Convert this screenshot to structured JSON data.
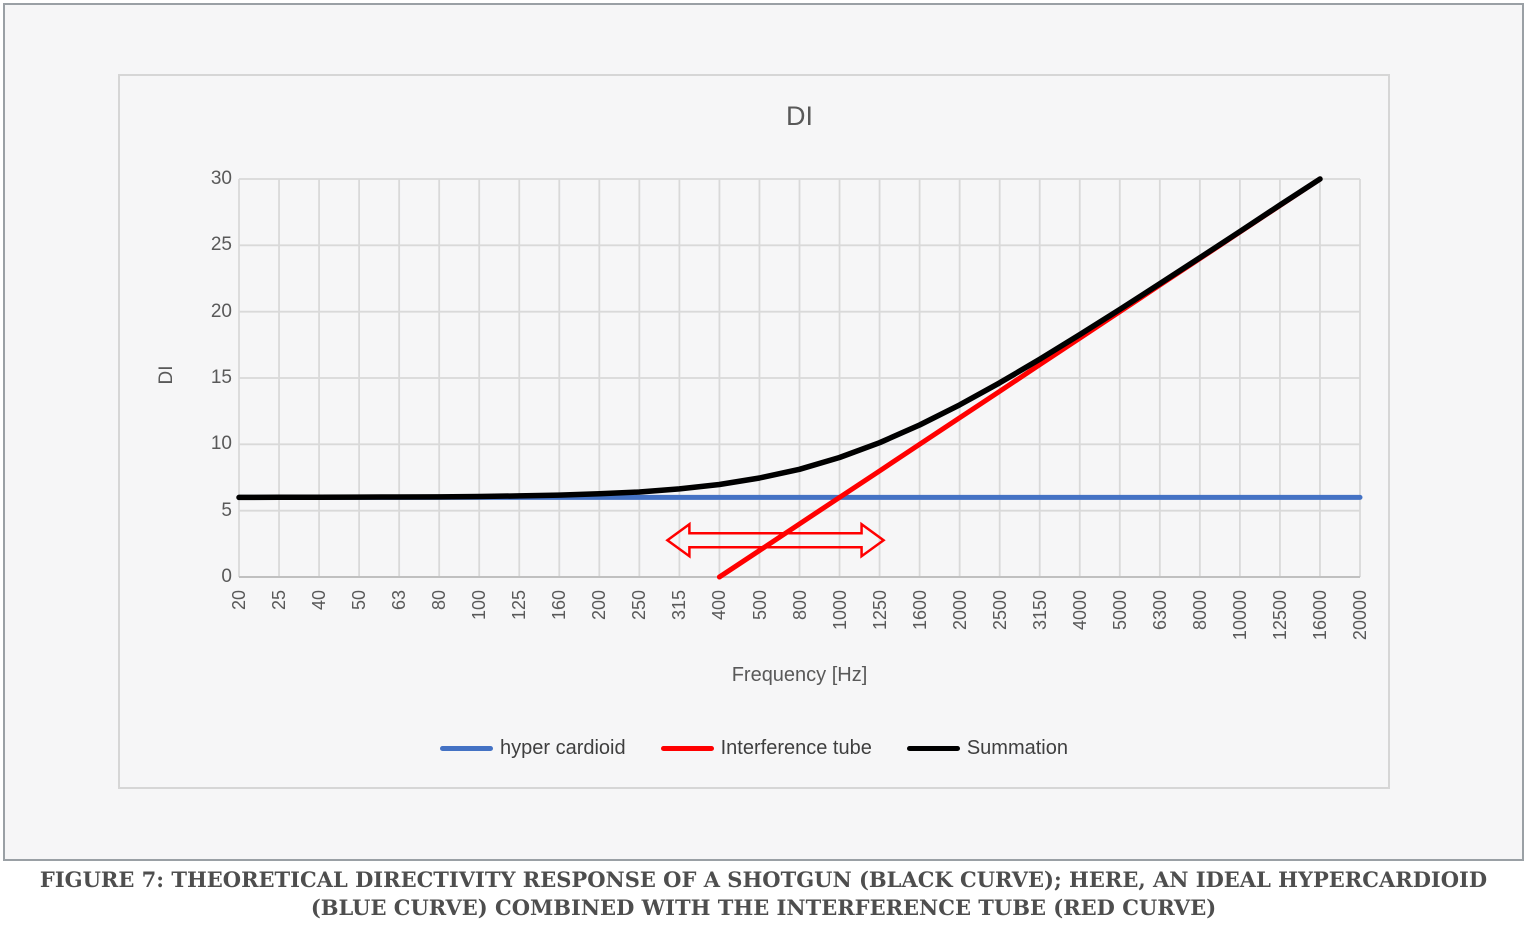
{
  "figure_caption": {
    "line1": "FIGURE 7: THEORETICAL DIRECTIVITY RESPONSE OF A SHOTGUN (BLACK CURVE); HERE, AN IDEAL HYPERCARDIOID",
    "line2": "(BLUE CURVE) COMBINED WITH THE INTERFERENCE TUBE (RED CURVE)"
  },
  "chart_data": {
    "type": "line",
    "title": "DI",
    "xlabel": "Frequency [Hz]",
    "ylabel": "DI",
    "ylim": [
      0,
      30
    ],
    "yticks": [
      0,
      5,
      10,
      15,
      20,
      25,
      30
    ],
    "grid": true,
    "legend_position": "bottom",
    "categories": [
      "20",
      "25",
      "40",
      "50",
      "63",
      "80",
      "100",
      "125",
      "160",
      "200",
      "250",
      "315",
      "400",
      "500",
      "800",
      "1000",
      "1250",
      "1600",
      "2000",
      "2500",
      "3150",
      "4000",
      "5000",
      "6300",
      "8000",
      "10000",
      "12500",
      "16000",
      "20000"
    ],
    "series": [
      {
        "name": "hyper cardioid",
        "color": "#4472C4",
        "line_width": 5,
        "values": [
          6,
          6,
          6,
          6,
          6,
          6,
          6,
          6,
          6,
          6,
          6,
          6,
          6,
          6,
          6,
          6,
          6,
          6,
          6,
          6,
          6,
          6,
          6,
          6,
          6,
          6,
          6,
          6,
          6
        ]
      },
      {
        "name": "Interference tube",
        "color": "#FF0000",
        "line_width": 5,
        "values": [
          null,
          null,
          null,
          null,
          null,
          null,
          null,
          null,
          null,
          null,
          null,
          null,
          0,
          2,
          4,
          6,
          8,
          10,
          12,
          14,
          16,
          18,
          20,
          22,
          24,
          26,
          28,
          30,
          null
        ]
      },
      {
        "name": "Summation",
        "color": "#000000",
        "line_width": 5.5,
        "values": [
          6.0,
          6.01,
          6.01,
          6.02,
          6.03,
          6.04,
          6.07,
          6.11,
          6.17,
          6.27,
          6.41,
          6.64,
          6.97,
          7.46,
          8.12,
          9.01,
          10.12,
          11.46,
          12.97,
          14.64,
          16.41,
          18.27,
          20.17,
          22.11,
          24.07,
          26.04,
          28.03,
          30,
          null
        ]
      }
    ],
    "annotation": {
      "type": "double-arrow",
      "color": "#FF0000",
      "from_hz": "315",
      "to_hz": "1250",
      "di": 3
    }
  },
  "colors": {
    "grid": "#d9d9d9",
    "axis_line": "#c0c0c0",
    "tick_text": "#595959",
    "legend_text": "#3f3f3f",
    "chart_border": "#d6d6d6",
    "outer_border": "#9aa0a5",
    "background": "#f6f6f7"
  }
}
